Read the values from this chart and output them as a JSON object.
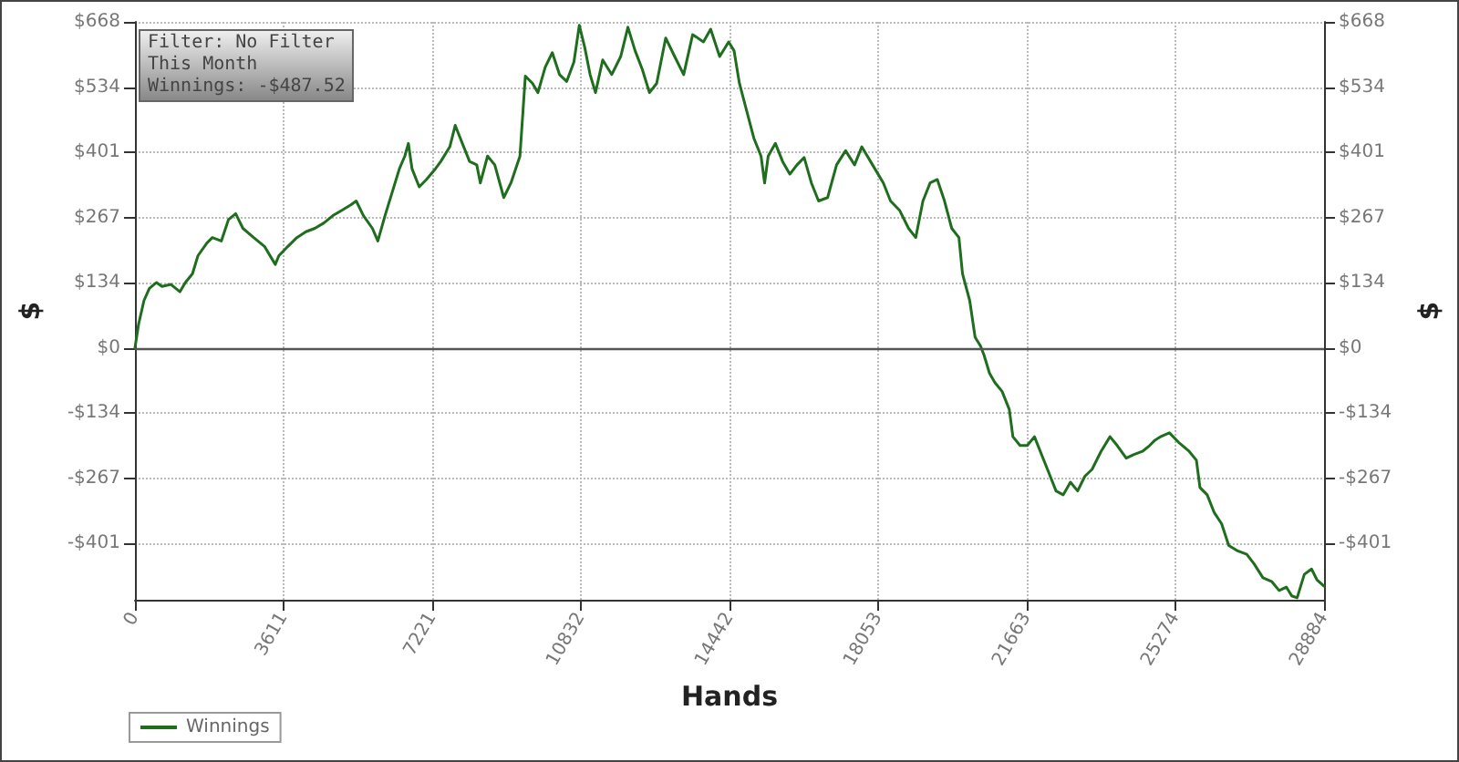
{
  "chart_data": {
    "type": "line",
    "xlabel": "Hands",
    "ylabel": "$",
    "y2label": "$",
    "annotations": [
      "Filter: No Filter",
      "This Month",
      "Winnings: -$487.52"
    ],
    "xlim": [
      0,
      28884
    ],
    "xticks": [
      0,
      3611,
      7221,
      10832,
      14442,
      18053,
      21663,
      25274,
      28884
    ],
    "ylim": [
      -516,
      668
    ],
    "yticks": [
      {
        "value": -400.8,
        "label": "-$401"
      },
      {
        "value": -267.2,
        "label": "-$267"
      },
      {
        "value": -133.6,
        "label": "-$134"
      },
      {
        "value": 0,
        "label": "$0"
      },
      {
        "value": 133.6,
        "label": "$134"
      },
      {
        "value": 267.2,
        "label": "$267"
      },
      {
        "value": 400.8,
        "label": "$401"
      },
      {
        "value": 534.4,
        "label": "$534"
      },
      {
        "value": 668,
        "label": "$668"
      }
    ],
    "y2lim": [
      -516,
      668
    ],
    "y2ticks": [
      {
        "value": -400.8,
        "label": "-$401"
      },
      {
        "value": -267.2,
        "label": "-$267"
      },
      {
        "value": -133.6,
        "label": "-$134"
      },
      {
        "value": 0,
        "label": "$0"
      },
      {
        "value": 133.6,
        "label": "$134"
      },
      {
        "value": 267.2,
        "label": "$267"
      },
      {
        "value": 400.8,
        "label": "$401"
      },
      {
        "value": 534.4,
        "label": "$534"
      },
      {
        "value": 668,
        "label": "$668"
      }
    ],
    "grid": true,
    "legend": "bottom left",
    "marker": "none",
    "line_style": "solid",
    "ref_lines": [
      {
        "axis": "y",
        "value": 0,
        "color": "#555555"
      }
    ],
    "series": [
      {
        "name": "Winnings",
        "color": "#1e6e1e",
        "x": [
          0,
          87,
          219,
          350,
          524,
          656,
          874,
          1093,
          1224,
          1398,
          1530,
          1748,
          1879,
          2098,
          2272,
          2447,
          2622,
          2884,
          3146,
          3409,
          3496,
          3715,
          3933,
          4152,
          4370,
          4589,
          4807,
          5026,
          5244,
          5375,
          5550,
          5768,
          5900,
          6074,
          6249,
          6424,
          6555,
          6642,
          6730,
          6905,
          7079,
          7298,
          7429,
          7648,
          7779,
          7953,
          8128,
          8303,
          8390,
          8565,
          8740,
          8959,
          9133,
          9352,
          9483,
          9658,
          9789,
          9964,
          10138,
          10313,
          10488,
          10663,
          10794,
          10925,
          11056,
          11187,
          11362,
          11581,
          11799,
          11974,
          12149,
          12323,
          12498,
          12673,
          12892,
          13110,
          13329,
          13547,
          13809,
          13984,
          14203,
          14421,
          14552,
          14683,
          14858,
          15033,
          15208,
          15295,
          15382,
          15557,
          15732,
          15907,
          16082,
          16256,
          16431,
          16606,
          16825,
          17043,
          17262,
          17480,
          17655,
          17917,
          18179,
          18354,
          18573,
          18791,
          18966,
          19141,
          19315,
          19490,
          19665,
          19840,
          20015,
          20102,
          20277,
          20408,
          20539,
          20626,
          20758,
          20889,
          21063,
          21238,
          21326,
          21500,
          21675,
          21850,
          22025,
          22200,
          22374,
          22549,
          22724,
          22899,
          23074,
          23248,
          23467,
          23685,
          23860,
          24079,
          24254,
          24472,
          24647,
          24778,
          24909,
          25128,
          25346,
          25608,
          25783,
          25870,
          26045,
          26220,
          26395,
          26570,
          26788,
          27007,
          27181,
          27400,
          27618,
          27793,
          27968,
          28099,
          28230,
          28405,
          28580,
          28711,
          28884
        ],
        "values": [
          0,
          48,
          97,
          122,
          134,
          126,
          130,
          115,
          134,
          152,
          189,
          215,
          226,
          219,
          263,
          275,
          245,
          226,
          208,
          171,
          189,
          208,
          226,
          238,
          245,
          256,
          271,
          282,
          293,
          301,
          271,
          245,
          219,
          271,
          319,
          367,
          393,
          419,
          367,
          330,
          345,
          367,
          382,
          412,
          456,
          419,
          382,
          375,
          338,
          393,
          375,
          308,
          338,
          393,
          557,
          542,
          523,
          575,
          605,
          560,
          546,
          586,
          661,
          616,
          560,
          523,
          590,
          560,
          597,
          657,
          609,
          571,
          523,
          542,
          635,
          597,
          560,
          642,
          627,
          653,
          597,
          627,
          609,
          542,
          486,
          430,
          393,
          338,
          393,
          419,
          382,
          356,
          375,
          390,
          338,
          301,
          308,
          375,
          404,
          375,
          412,
          375,
          338,
          301,
          282,
          245,
          226,
          301,
          338,
          345,
          301,
          245,
          226,
          152,
          97,
          22,
          4,
          -15,
          -52,
          -71,
          -89,
          -126,
          -182,
          -200,
          -200,
          -182,
          -219,
          -256,
          -293,
          -301,
          -275,
          -293,
          -263,
          -249,
          -212,
          -182,
          -200,
          -226,
          -219,
          -212,
          -200,
          -189,
          -182,
          -174,
          -193,
          -212,
          -230,
          -286,
          -301,
          -338,
          -360,
          -405,
          -416,
          -423,
          -442,
          -471,
          -479,
          -497,
          -490,
          -508,
          -512,
          -464,
          -453,
          -475,
          -488
        ]
      }
    ]
  }
}
